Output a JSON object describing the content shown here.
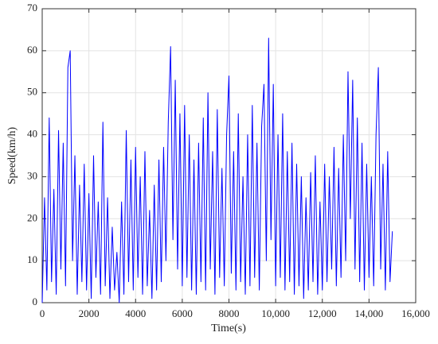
{
  "chart_data": {
    "type": "line",
    "xlabel": "Time(s)",
    "ylabel": "Speed(km/h)",
    "x": [
      0,
      100,
      200,
      300,
      400,
      500,
      600,
      700,
      800,
      900,
      1000,
      1100,
      1200,
      1300,
      1400,
      1500,
      1600,
      1700,
      1800,
      1900,
      2000,
      2100,
      2200,
      2300,
      2400,
      2500,
      2600,
      2700,
      2800,
      2900,
      3000,
      3100,
      3200,
      3300,
      3400,
      3500,
      3600,
      3700,
      3800,
      3900,
      4000,
      4100,
      4200,
      4300,
      4400,
      4500,
      4600,
      4700,
      4800,
      4900,
      5000,
      5100,
      5200,
      5300,
      5400,
      5500,
      5600,
      5700,
      5800,
      5900,
      6000,
      6100,
      6200,
      6300,
      6400,
      6500,
      6600,
      6700,
      6800,
      6900,
      7000,
      7100,
      7200,
      7300,
      7400,
      7500,
      7600,
      7700,
      7800,
      7900,
      8000,
      8100,
      8200,
      8300,
      8400,
      8500,
      8600,
      8700,
      8800,
      8900,
      9000,
      9100,
      9200,
      9300,
      9400,
      9500,
      9600,
      9700,
      9800,
      9900,
      10000,
      10100,
      10200,
      10300,
      10400,
      10500,
      10600,
      10700,
      10800,
      10900,
      11000,
      11100,
      11200,
      11300,
      11400,
      11500,
      11600,
      11700,
      11800,
      11900,
      12000,
      12100,
      12200,
      12300,
      12400,
      12500,
      12600,
      12700,
      12800,
      12900,
      13000,
      13100,
      13200,
      13300,
      13400,
      13500,
      13600,
      13700,
      13800,
      13900,
      14000,
      14100,
      14200,
      14300,
      14400,
      14500,
      14600,
      14700,
      14800,
      14900,
      15000
    ],
    "values": [
      0,
      25,
      3,
      44,
      5,
      27,
      2,
      41,
      8,
      38,
      4,
      56,
      60,
      10,
      35,
      2,
      28,
      5,
      33,
      3,
      26,
      1,
      35,
      6,
      24,
      2,
      43,
      4,
      25,
      1,
      18,
      3,
      12,
      0,
      24,
      2,
      41,
      5,
      34,
      3,
      37,
      6,
      30,
      2,
      36,
      4,
      22,
      1,
      28,
      3,
      34,
      5,
      37,
      10,
      43,
      61,
      15,
      53,
      8,
      45,
      4,
      47,
      6,
      40,
      3,
      34,
      2,
      38,
      5,
      44,
      3,
      50,
      8,
      36,
      2,
      46,
      6,
      32,
      4,
      40,
      54,
      7,
      36,
      3,
      45,
      5,
      30,
      2,
      40,
      4,
      47,
      6,
      38,
      3,
      42,
      52,
      10,
      63,
      15,
      52,
      4,
      40,
      6,
      45,
      3,
      36,
      5,
      38,
      2,
      33,
      4,
      30,
      1,
      25,
      3,
      31,
      5,
      35,
      2,
      24,
      3,
      33,
      5,
      30,
      8,
      37,
      4,
      32,
      6,
      40,
      10,
      55,
      20,
      53,
      8,
      44,
      5,
      38,
      3,
      33,
      6,
      30,
      4,
      40,
      56,
      8,
      33,
      3,
      36,
      5,
      17
    ],
    "color": "#0000ff",
    "xlim": [
      0,
      16000
    ],
    "xticks": [
      0,
      2000,
      4000,
      6000,
      8000,
      {
        "value": 10000,
        "label": "10,000"
      },
      {
        "value": 12000,
        "label": "12,000"
      },
      {
        "value": 14000,
        "label": "14,000"
      },
      {
        "value": 16000,
        "label": "16,000"
      }
    ],
    "ylim": [
      0,
      70
    ],
    "yticks": [
      0,
      10,
      20,
      30,
      40,
      50,
      60,
      70
    ],
    "grid": true
  }
}
